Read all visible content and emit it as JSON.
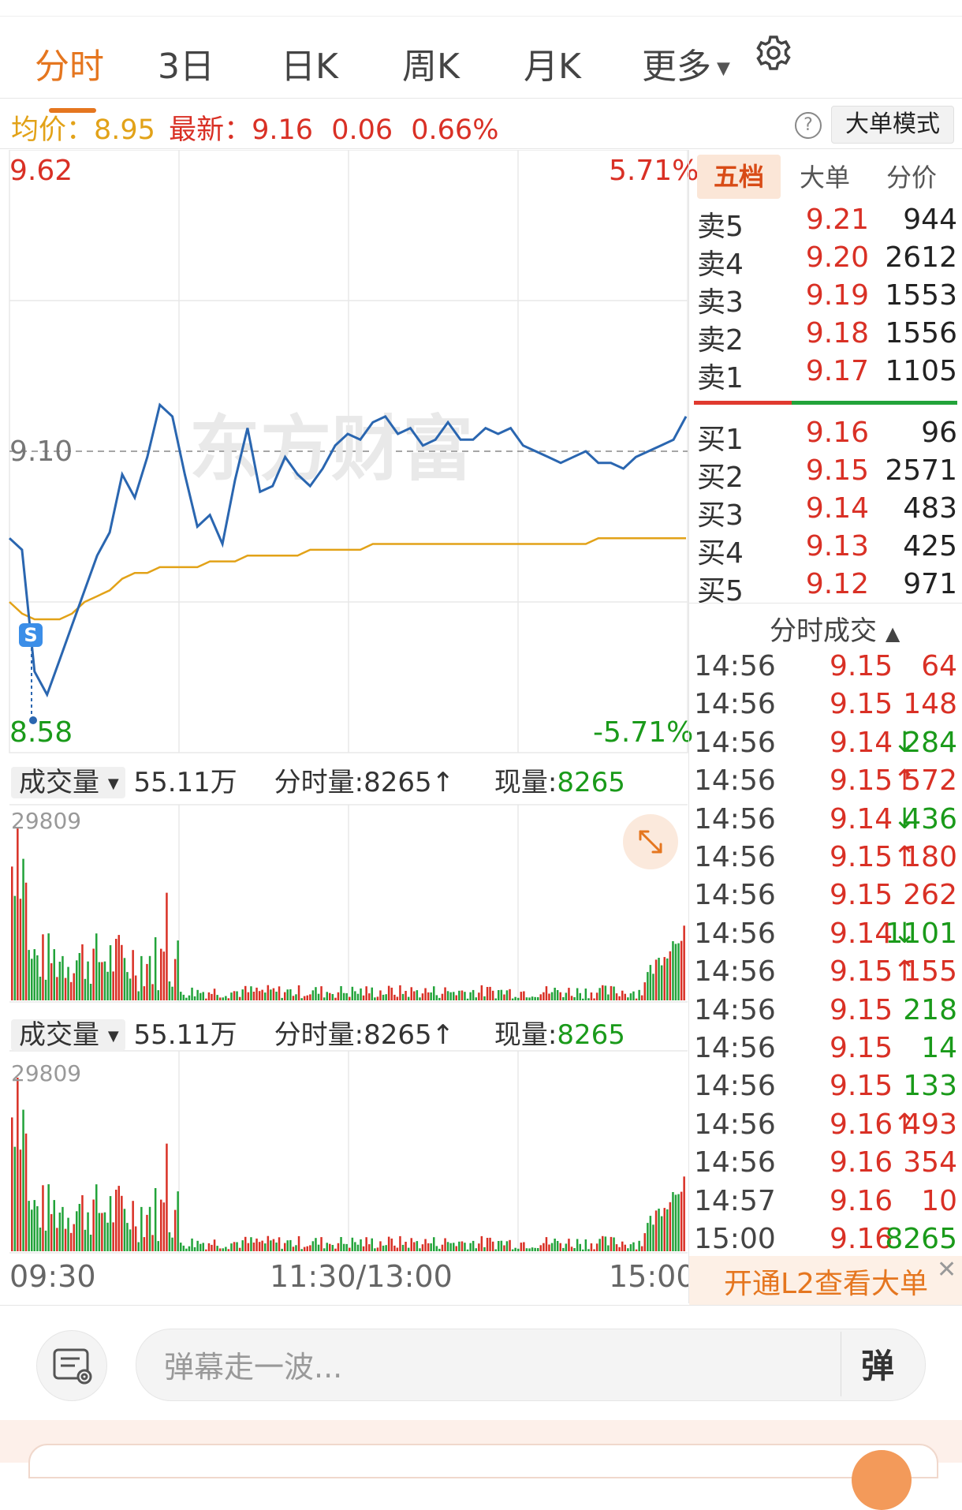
{
  "tabs": [
    {
      "label": "分时",
      "active": true
    },
    {
      "label": "3日"
    },
    {
      "label": "日K"
    },
    {
      "label": "周K"
    },
    {
      "label": "月K"
    },
    {
      "label": "更多"
    }
  ],
  "info": {
    "avg_label": "均价：",
    "avg_value": "8.95",
    "latest_label": "最新：",
    "latest_value": "9.16",
    "change": "0.06",
    "change_pct": "0.66%",
    "help": "?",
    "mode_button": "大单模式"
  },
  "price_chart": {
    "top_price": "9.62",
    "mid_price": "9.10",
    "bottom_price": "8.58",
    "top_pct": "5.71%",
    "bottom_pct": "-5.71%",
    "marker": "S",
    "watermark": "东方财富"
  },
  "volume_panels": [
    {
      "indicator": "成交量",
      "total": "55.11万",
      "minute_label": "分时量:",
      "minute_value": "8265↑",
      "now_label": "现量:",
      "now_value": "8265",
      "max": "29809"
    },
    {
      "indicator": "成交量",
      "total": "55.11万",
      "minute_label": "分时量:",
      "minute_value": "8265↑",
      "now_label": "现量:",
      "now_value": "8265",
      "max": "29809"
    }
  ],
  "time_axis": [
    "09:30",
    "11:30/13:00",
    "15:00"
  ],
  "right_tabs": [
    "五档",
    "大单",
    "分价"
  ],
  "asks": [
    {
      "label": "卖5",
      "price": "9.21",
      "vol": "944"
    },
    {
      "label": "卖4",
      "price": "9.20",
      "vol": "2612"
    },
    {
      "label": "卖3",
      "price": "9.19",
      "vol": "1553"
    },
    {
      "label": "卖2",
      "price": "9.18",
      "vol": "1556"
    },
    {
      "label": "卖1",
      "price": "9.17",
      "vol": "1105"
    }
  ],
  "bids": [
    {
      "label": "买1",
      "price": "9.16",
      "vol": "96"
    },
    {
      "label": "买2",
      "price": "9.15",
      "vol": "2571"
    },
    {
      "label": "买3",
      "price": "9.14",
      "vol": "483"
    },
    {
      "label": "买4",
      "price": "9.13",
      "vol": "425"
    },
    {
      "label": "买5",
      "price": "9.12",
      "vol": "971"
    }
  ],
  "ticks_title": "分时成交",
  "ticks": [
    {
      "time": "14:56",
      "price": "9.15",
      "arrow": "",
      "vol": "64",
      "color": "red"
    },
    {
      "time": "14:56",
      "price": "9.15",
      "arrow": "",
      "vol": "148",
      "color": "red"
    },
    {
      "time": "14:56",
      "price": "9.14",
      "arrow": "↓",
      "vol": "284",
      "color": "green"
    },
    {
      "time": "14:56",
      "price": "9.15",
      "arrow": "↑",
      "vol": "572",
      "color": "red"
    },
    {
      "time": "14:56",
      "price": "9.14",
      "arrow": "↓",
      "vol": "436",
      "color": "green"
    },
    {
      "time": "14:56",
      "price": "9.15",
      "arrow": "↑",
      "vol": "180",
      "color": "red"
    },
    {
      "time": "14:56",
      "price": "9.15",
      "arrow": "",
      "vol": "262",
      "color": "red"
    },
    {
      "time": "14:56",
      "price": "9.14",
      "arrow": "↓",
      "vol": "1101",
      "color": "green"
    },
    {
      "time": "14:56",
      "price": "9.15",
      "arrow": "↑",
      "vol": "155",
      "color": "red"
    },
    {
      "time": "14:56",
      "price": "9.15",
      "arrow": "",
      "vol": "218",
      "color": "green"
    },
    {
      "time": "14:56",
      "price": "9.15",
      "arrow": "",
      "vol": "14",
      "color": "green"
    },
    {
      "time": "14:56",
      "price": "9.15",
      "arrow": "",
      "vol": "133",
      "color": "green"
    },
    {
      "time": "14:56",
      "price": "9.16",
      "arrow": "↑",
      "vol": "493",
      "color": "red"
    },
    {
      "time": "14:56",
      "price": "9.16",
      "arrow": "",
      "vol": "354",
      "color": "red"
    },
    {
      "time": "14:57",
      "price": "9.16",
      "arrow": "",
      "vol": "10",
      "color": "red"
    },
    {
      "time": "15:00",
      "price": "9.16",
      "arrow": "",
      "vol": "8265",
      "color": "green"
    }
  ],
  "l2_banner": "开通L2查看大单",
  "danmu_placeholder": "弹幕走一波...",
  "danmu_send": "弹",
  "colors": {
    "accent": "#e5761f",
    "up": "#d93025",
    "down": "#1a9a1a",
    "avg_line": "#e2a218",
    "price_line": "#2a66b0"
  },
  "chart_data": {
    "type": "line",
    "price_range": [
      8.58,
      9.62
    ],
    "pre_close": 9.1,
    "series": [
      {
        "name": "最新",
        "values": [
          8.95,
          8.93,
          8.72,
          8.68,
          8.74,
          8.8,
          8.86,
          8.92,
          8.96,
          9.06,
          9.02,
          9.09,
          9.18,
          9.16,
          9.06,
          8.97,
          8.99,
          8.94,
          9.05,
          9.14,
          9.03,
          9.04,
          9.09,
          9.06,
          9.04,
          9.07,
          9.11,
          9.13,
          9.12,
          9.15,
          9.16,
          9.13,
          9.14,
          9.11,
          9.12,
          9.15,
          9.12,
          9.12,
          9.14,
          9.13,
          9.14,
          9.11,
          9.1,
          9.09,
          9.08,
          9.09,
          9.1,
          9.08,
          9.08,
          9.07,
          9.09,
          9.1,
          9.11,
          9.12,
          9.16
        ]
      },
      {
        "name": "均价",
        "values": [
          8.84,
          8.82,
          8.81,
          8.81,
          8.81,
          8.82,
          8.84,
          8.85,
          8.86,
          8.88,
          8.89,
          8.89,
          8.9,
          8.9,
          8.9,
          8.9,
          8.91,
          8.91,
          8.91,
          8.92,
          8.92,
          8.92,
          8.92,
          8.92,
          8.93,
          8.93,
          8.93,
          8.93,
          8.93,
          8.94,
          8.94,
          8.94,
          8.94,
          8.94,
          8.94,
          8.94,
          8.94,
          8.94,
          8.94,
          8.94,
          8.94,
          8.94,
          8.94,
          8.94,
          8.94,
          8.94,
          8.94,
          8.95,
          8.95,
          8.95,
          8.95,
          8.95,
          8.95,
          8.95,
          8.95
        ]
      }
    ],
    "volume": {
      "max": 29809
    }
  }
}
